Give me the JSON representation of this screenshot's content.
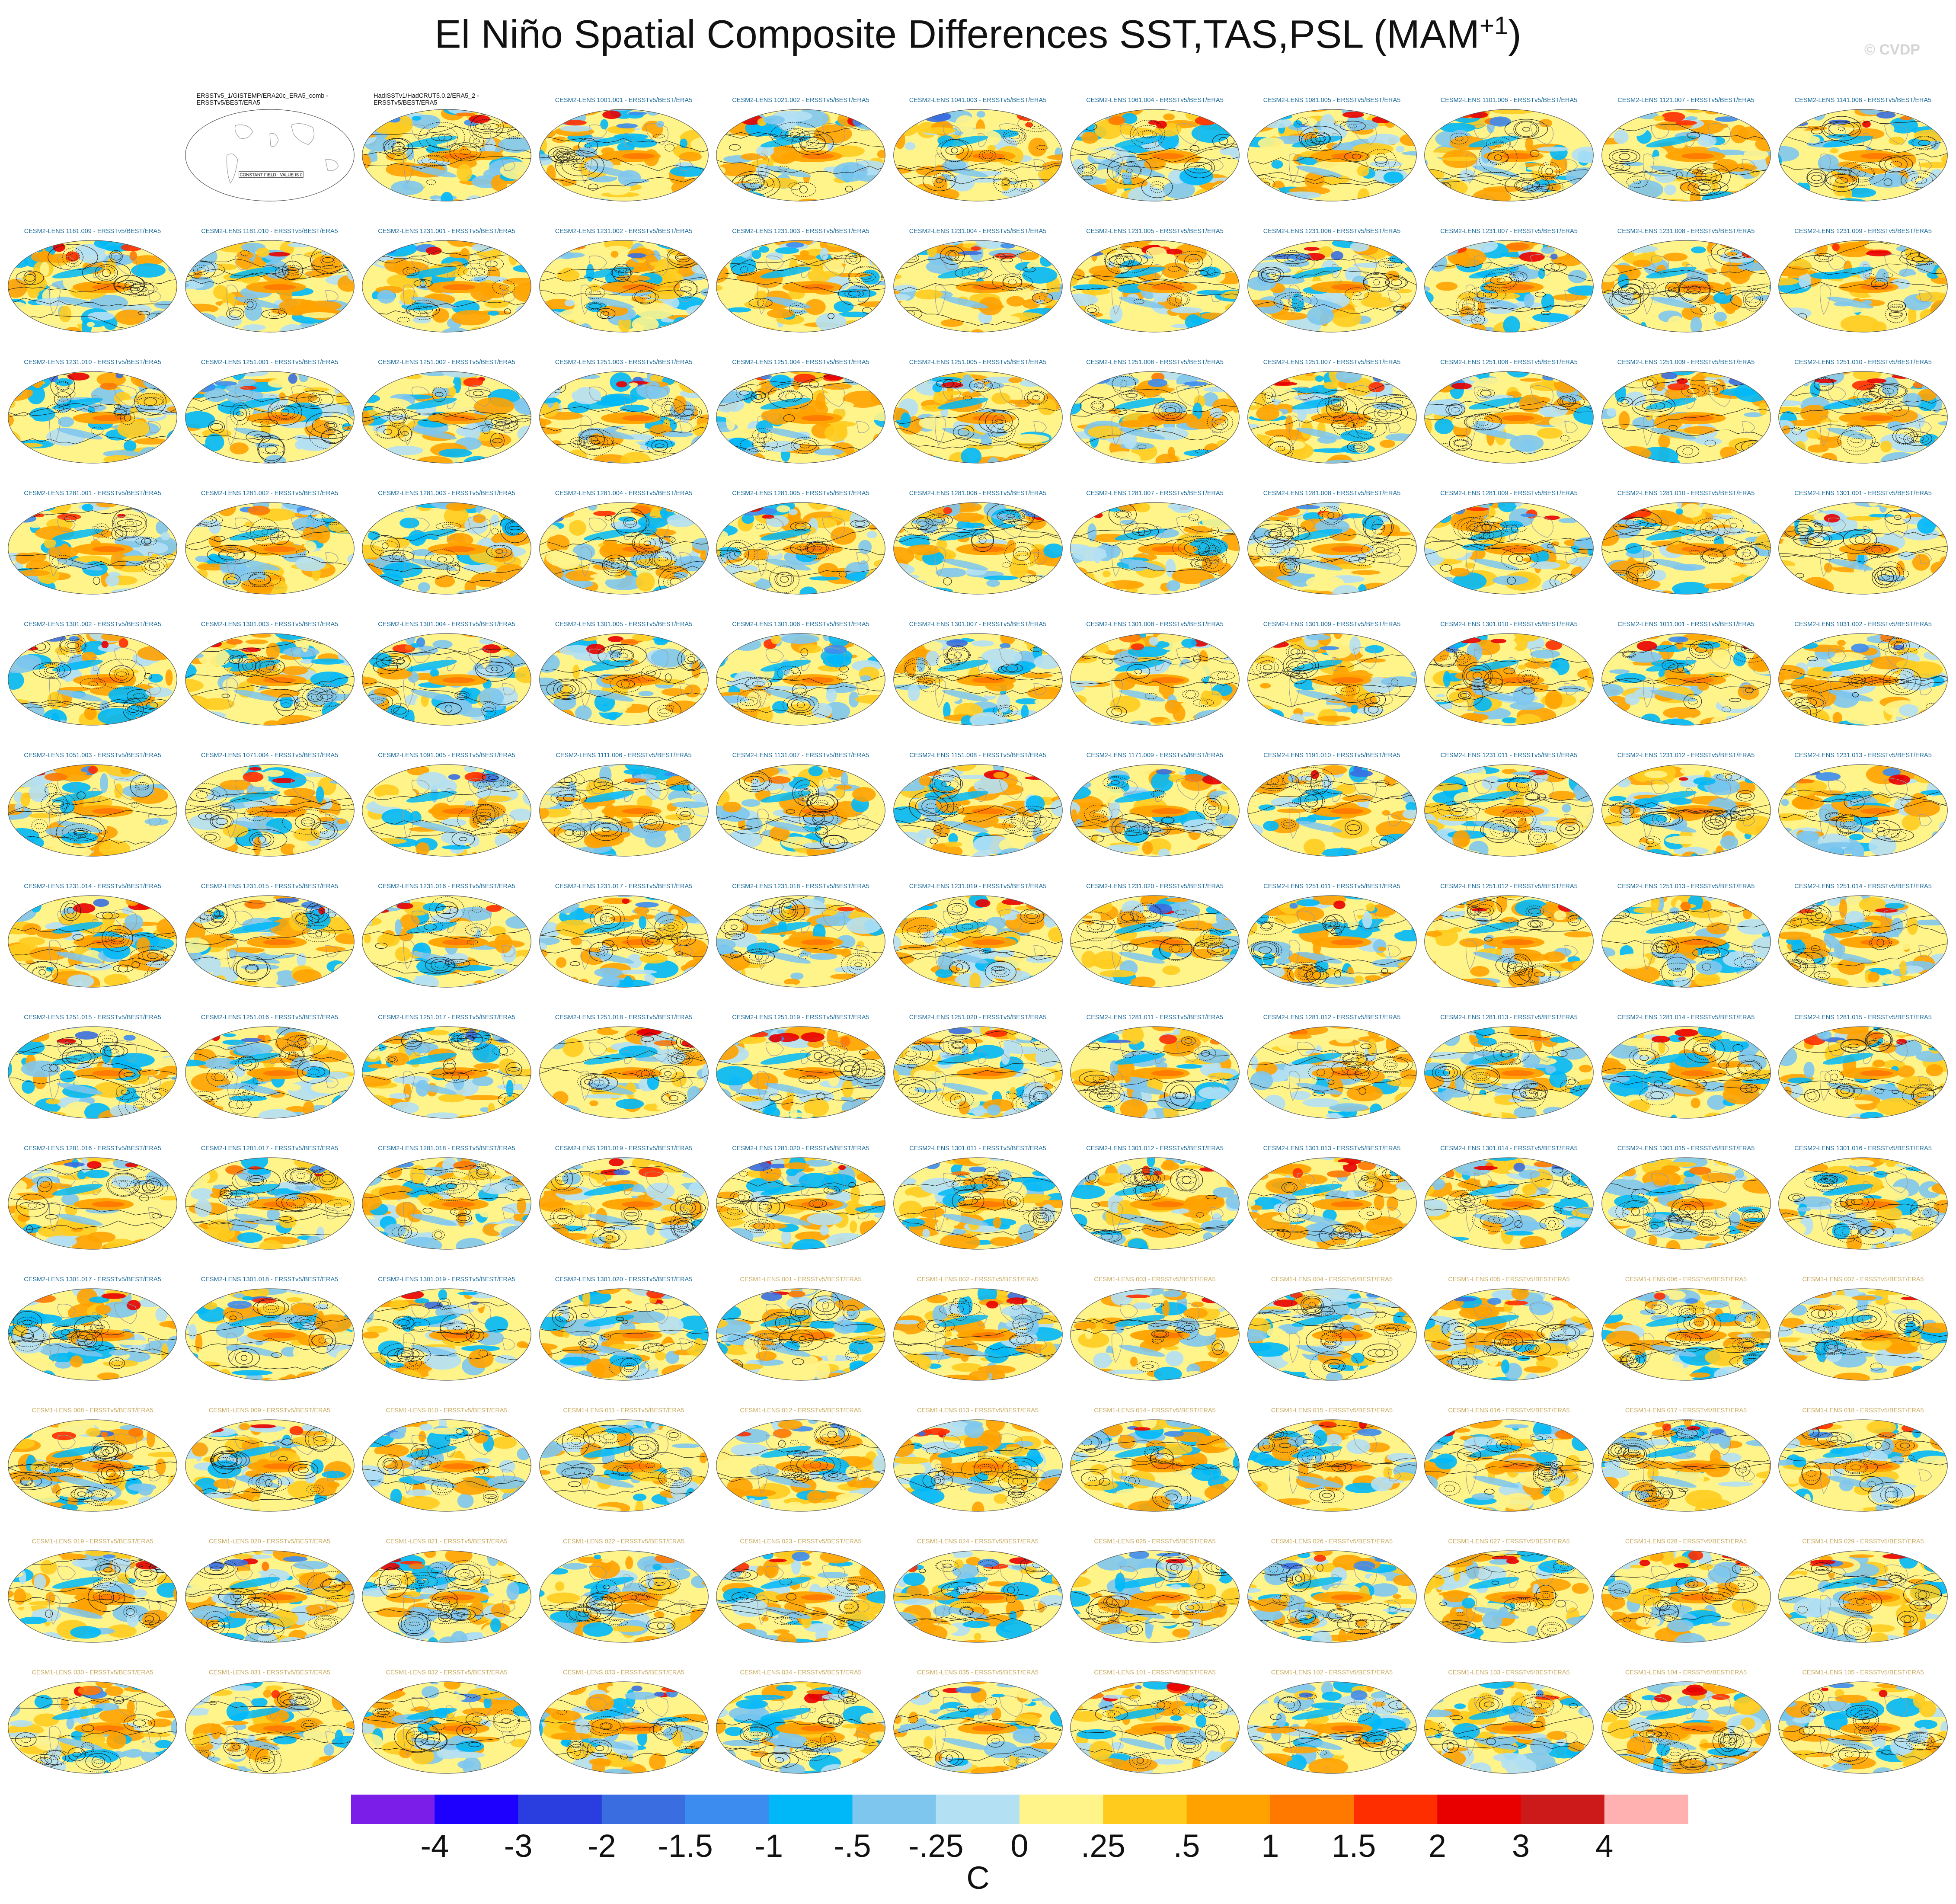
{
  "title": "El Niño Spatial Composite Differences SST,TAS,PSL (MAM",
  "title_superscript": "+1",
  "title_close": ")",
  "watermark": "© CVDP",
  "colors": {
    "cesm2_title": "#1a6a9a",
    "cesm1_title": "#c8a85a",
    "obs_title": "#111111",
    "contour": "#1a1a1a",
    "land_outline": "#9a9a9a"
  },
  "chart_data": {
    "type": "heatmap",
    "layout": {
      "rows": 13,
      "cols": 11,
      "projection": "robinson-like global map"
    },
    "panels": [
      {
        "label": "ERSSTv5_1/GISTEMP/ERA20c_ERA5_comb - ERSSTv5/BEST/ERA5",
        "group": "obs",
        "note": "CONSTANT FIELD - VALUE IS 0"
      },
      {
        "label": "HadISSTv1/HadCRUT5.0.2/ERA5_2 - ERSSTv5/BEST/ERA5",
        "group": "obs"
      },
      {
        "label": "CESM2-LENS 1001.001 - ERSSTv5/BEST/ERA5",
        "group": "cesm2"
      },
      {
        "label": "CESM2-LENS 1021.002 - ERSSTv5/BEST/ERA5",
        "group": "cesm2"
      },
      {
        "label": "CESM2-LENS 1041.003 - ERSSTv5/BEST/ERA5",
        "group": "cesm2"
      },
      {
        "label": "CESM2-LENS 1061.004 - ERSSTv5/BEST/ERA5",
        "group": "cesm2"
      },
      {
        "label": "CESM2-LENS 1081.005 - ERSSTv5/BEST/ERA5",
        "group": "cesm2"
      },
      {
        "label": "CESM2-LENS 1101.006 - ERSSTv5/BEST/ERA5",
        "group": "cesm2"
      },
      {
        "label": "CESM2-LENS 1121.007 - ERSSTv5/BEST/ERA5",
        "group": "cesm2"
      },
      {
        "label": "CESM2-LENS 1141.008 - ERSSTv5/BEST/ERA5",
        "group": "cesm2"
      },
      {
        "label": "CESM2-LENS 1161.009 - ERSSTv5/BEST/ERA5",
        "group": "cesm2"
      },
      {
        "label": "CESM2-LENS 1181.010 - ERSSTv5/BEST/ERA5",
        "group": "cesm2"
      },
      {
        "label": "CESM2-LENS 1231.001 - ERSSTv5/BEST/ERA5",
        "group": "cesm2"
      },
      {
        "label": "CESM2-LENS 1231.002 - ERSSTv5/BEST/ERA5",
        "group": "cesm2"
      },
      {
        "label": "CESM2-LENS 1231.003 - ERSSTv5/BEST/ERA5",
        "group": "cesm2"
      },
      {
        "label": "CESM2-LENS 1231.004 - ERSSTv5/BEST/ERA5",
        "group": "cesm2"
      },
      {
        "label": "CESM2-LENS 1231.005 - ERSSTv5/BEST/ERA5",
        "group": "cesm2"
      },
      {
        "label": "CESM2-LENS 1231.006 - ERSSTv5/BEST/ERA5",
        "group": "cesm2"
      },
      {
        "label": "CESM2-LENS 1231.007 - ERSSTv5/BEST/ERA5",
        "group": "cesm2"
      },
      {
        "label": "CESM2-LENS 1231.008 - ERSSTv5/BEST/ERA5",
        "group": "cesm2"
      },
      {
        "label": "CESM2-LENS 1231.009 - ERSSTv5/BEST/ERA5",
        "group": "cesm2"
      },
      {
        "label": "CESM2-LENS 1231.010 - ERSSTv5/BEST/ERA5",
        "group": "cesm2"
      },
      {
        "label": "CESM2-LENS 1251.001 - ERSSTv5/BEST/ERA5",
        "group": "cesm2"
      },
      {
        "label": "CESM2-LENS 1251.002 - ERSSTv5/BEST/ERA5",
        "group": "cesm2"
      },
      {
        "label": "CESM2-LENS 1251.003 - ERSSTv5/BEST/ERA5",
        "group": "cesm2"
      },
      {
        "label": "CESM2-LENS 1251.004 - ERSSTv5/BEST/ERA5",
        "group": "cesm2"
      },
      {
        "label": "CESM2-LENS 1251.005 - ERSSTv5/BEST/ERA5",
        "group": "cesm2"
      },
      {
        "label": "CESM2-LENS 1251.006 - ERSSTv5/BEST/ERA5",
        "group": "cesm2"
      },
      {
        "label": "CESM2-LENS 1251.007 - ERSSTv5/BEST/ERA5",
        "group": "cesm2"
      },
      {
        "label": "CESM2-LENS 1251.008 - ERSSTv5/BEST/ERA5",
        "group": "cesm2"
      },
      {
        "label": "CESM2-LENS 1251.009 - ERSSTv5/BEST/ERA5",
        "group": "cesm2"
      },
      {
        "label": "CESM2-LENS 1251.010 - ERSSTv5/BEST/ERA5",
        "group": "cesm2"
      },
      {
        "label": "CESM2-LENS 1281.001 - ERSSTv5/BEST/ERA5",
        "group": "cesm2"
      },
      {
        "label": "CESM2-LENS 1281.002 - ERSSTv5/BEST/ERA5",
        "group": "cesm2"
      },
      {
        "label": "CESM2-LENS 1281.003 - ERSSTv5/BEST/ERA5",
        "group": "cesm2"
      },
      {
        "label": "CESM2-LENS 1281.004 - ERSSTv5/BEST/ERA5",
        "group": "cesm2"
      },
      {
        "label": "CESM2-LENS 1281.005 - ERSSTv5/BEST/ERA5",
        "group": "cesm2"
      },
      {
        "label": "CESM2-LENS 1281.006 - ERSSTv5/BEST/ERA5",
        "group": "cesm2"
      },
      {
        "label": "CESM2-LENS 1281.007 - ERSSTv5/BEST/ERA5",
        "group": "cesm2"
      },
      {
        "label": "CESM2-LENS 1281.008 - ERSSTv5/BEST/ERA5",
        "group": "cesm2"
      },
      {
        "label": "CESM2-LENS 1281.009 - ERSSTv5/BEST/ERA5",
        "group": "cesm2"
      },
      {
        "label": "CESM2-LENS 1281.010 - ERSSTv5/BEST/ERA5",
        "group": "cesm2"
      },
      {
        "label": "CESM2-LENS 1301.001 - ERSSTv5/BEST/ERA5",
        "group": "cesm2"
      },
      {
        "label": "CESM2-LENS 1301.002 - ERSSTv5/BEST/ERA5",
        "group": "cesm2"
      },
      {
        "label": "CESM2-LENS 1301.003 - ERSSTv5/BEST/ERA5",
        "group": "cesm2"
      },
      {
        "label": "CESM2-LENS 1301.004 - ERSSTv5/BEST/ERA5",
        "group": "cesm2"
      },
      {
        "label": "CESM2-LENS 1301.005 - ERSSTv5/BEST/ERA5",
        "group": "cesm2"
      },
      {
        "label": "CESM2-LENS 1301.006 - ERSSTv5/BEST/ERA5",
        "group": "cesm2"
      },
      {
        "label": "CESM2-LENS 1301.007 - ERSSTv5/BEST/ERA5",
        "group": "cesm2"
      },
      {
        "label": "CESM2-LENS 1301.008 - ERSSTv5/BEST/ERA5",
        "group": "cesm2"
      },
      {
        "label": "CESM2-LENS 1301.009 - ERSSTv5/BEST/ERA5",
        "group": "cesm2"
      },
      {
        "label": "CESM2-LENS 1301.010 - ERSSTv5/BEST/ERA5",
        "group": "cesm2"
      },
      {
        "label": "CESM2-LENS 1011.001 - ERSSTv5/BEST/ERA5",
        "group": "cesm2"
      },
      {
        "label": "CESM2-LENS 1031.002 - ERSSTv5/BEST/ERA5",
        "group": "cesm2"
      },
      {
        "label": "CESM2-LENS 1051.003 - ERSSTv5/BEST/ERA5",
        "group": "cesm2"
      },
      {
        "label": "CESM2-LENS 1071.004 - ERSSTv5/BEST/ERA5",
        "group": "cesm2"
      },
      {
        "label": "CESM2-LENS 1091.005 - ERSSTv5/BEST/ERA5",
        "group": "cesm2"
      },
      {
        "label": "CESM2-LENS 1111.006 - ERSSTv5/BEST/ERA5",
        "group": "cesm2"
      },
      {
        "label": "CESM2-LENS 1131.007 - ERSSTv5/BEST/ERA5",
        "group": "cesm2"
      },
      {
        "label": "CESM2-LENS 1151.008 - ERSSTv5/BEST/ERA5",
        "group": "cesm2"
      },
      {
        "label": "CESM2-LENS 1171.009 - ERSSTv5/BEST/ERA5",
        "group": "cesm2"
      },
      {
        "label": "CESM2-LENS 1191.010 - ERSSTv5/BEST/ERA5",
        "group": "cesm2"
      },
      {
        "label": "CESM2-LENS 1231.011 - ERSSTv5/BEST/ERA5",
        "group": "cesm2"
      },
      {
        "label": "CESM2-LENS 1231.012 - ERSSTv5/BEST/ERA5",
        "group": "cesm2"
      },
      {
        "label": "CESM2-LENS 1231.013 - ERSSTv5/BEST/ERA5",
        "group": "cesm2"
      },
      {
        "label": "CESM2-LENS 1231.014 - ERSSTv5/BEST/ERA5",
        "group": "cesm2"
      },
      {
        "label": "CESM2-LENS 1231.015 - ERSSTv5/BEST/ERA5",
        "group": "cesm2"
      },
      {
        "label": "CESM2-LENS 1231.016 - ERSSTv5/BEST/ERA5",
        "group": "cesm2"
      },
      {
        "label": "CESM2-LENS 1231.017 - ERSSTv5/BEST/ERA5",
        "group": "cesm2"
      },
      {
        "label": "CESM2-LENS 1231.018 - ERSSTv5/BEST/ERA5",
        "group": "cesm2"
      },
      {
        "label": "CESM2-LENS 1231.019 - ERSSTv5/BEST/ERA5",
        "group": "cesm2"
      },
      {
        "label": "CESM2-LENS 1231.020 - ERSSTv5/BEST/ERA5",
        "group": "cesm2"
      },
      {
        "label": "CESM2-LENS 1251.011 - ERSSTv5/BEST/ERA5",
        "group": "cesm2"
      },
      {
        "label": "CESM2-LENS 1251.012 - ERSSTv5/BEST/ERA5",
        "group": "cesm2"
      },
      {
        "label": "CESM2-LENS 1251.013 - ERSSTv5/BEST/ERA5",
        "group": "cesm2"
      },
      {
        "label": "CESM2-LENS 1251.014 - ERSSTv5/BEST/ERA5",
        "group": "cesm2"
      },
      {
        "label": "CESM2-LENS 1251.015 - ERSSTv5/BEST/ERA5",
        "group": "cesm2"
      },
      {
        "label": "CESM2-LENS 1251.016 - ERSSTv5/BEST/ERA5",
        "group": "cesm2"
      },
      {
        "label": "CESM2-LENS 1251.017 - ERSSTv5/BEST/ERA5",
        "group": "cesm2"
      },
      {
        "label": "CESM2-LENS 1251.018 - ERSSTv5/BEST/ERA5",
        "group": "cesm2"
      },
      {
        "label": "CESM2-LENS 1251.019 - ERSSTv5/BEST/ERA5",
        "group": "cesm2"
      },
      {
        "label": "CESM2-LENS 1251.020 - ERSSTv5/BEST/ERA5",
        "group": "cesm2"
      },
      {
        "label": "CESM2-LENS 1281.011 - ERSSTv5/BEST/ERA5",
        "group": "cesm2"
      },
      {
        "label": "CESM2-LENS 1281.012 - ERSSTv5/BEST/ERA5",
        "group": "cesm2"
      },
      {
        "label": "CESM2-LENS 1281.013 - ERSSTv5/BEST/ERA5",
        "group": "cesm2"
      },
      {
        "label": "CESM2-LENS 1281.014 - ERSSTv5/BEST/ERA5",
        "group": "cesm2"
      },
      {
        "label": "CESM2-LENS 1281.015 - ERSSTv5/BEST/ERA5",
        "group": "cesm2"
      },
      {
        "label": "CESM2-LENS 1281.016 - ERSSTv5/BEST/ERA5",
        "group": "cesm2"
      },
      {
        "label": "CESM2-LENS 1281.017 - ERSSTv5/BEST/ERA5",
        "group": "cesm2"
      },
      {
        "label": "CESM2-LENS 1281.018 - ERSSTv5/BEST/ERA5",
        "group": "cesm2"
      },
      {
        "label": "CESM2-LENS 1281.019 - ERSSTv5/BEST/ERA5",
        "group": "cesm2"
      },
      {
        "label": "CESM2-LENS 1281.020 - ERSSTv5/BEST/ERA5",
        "group": "cesm2"
      },
      {
        "label": "CESM2-LENS 1301.011 - ERSSTv5/BEST/ERA5",
        "group": "cesm2"
      },
      {
        "label": "CESM2-LENS 1301.012 - ERSSTv5/BEST/ERA5",
        "group": "cesm2"
      },
      {
        "label": "CESM2-LENS 1301.013 - ERSSTv5/BEST/ERA5",
        "group": "cesm2"
      },
      {
        "label": "CESM2-LENS 1301.014 - ERSSTv5/BEST/ERA5",
        "group": "cesm2"
      },
      {
        "label": "CESM2-LENS 1301.015 - ERSSTv5/BEST/ERA5",
        "group": "cesm2"
      },
      {
        "label": "CESM2-LENS 1301.016 - ERSSTv5/BEST/ERA5",
        "group": "cesm2"
      },
      {
        "label": "CESM2-LENS 1301.017 - ERSSTv5/BEST/ERA5",
        "group": "cesm2"
      },
      {
        "label": "CESM2-LENS 1301.018 - ERSSTv5/BEST/ERA5",
        "group": "cesm2"
      },
      {
        "label": "CESM2-LENS 1301.019 - ERSSTv5/BEST/ERA5",
        "group": "cesm2"
      },
      {
        "label": "CESM2-LENS 1301.020 - ERSSTv5/BEST/ERA5",
        "group": "cesm2"
      },
      {
        "label": "CESM1-LENS 001 - ERSSTv5/BEST/ERA5",
        "group": "cesm1"
      },
      {
        "label": "CESM1-LENS 002 - ERSSTv5/BEST/ERA5",
        "group": "cesm1"
      },
      {
        "label": "CESM1-LENS 003 - ERSSTv5/BEST/ERA5",
        "group": "cesm1"
      },
      {
        "label": "CESM1-LENS 004 - ERSSTv5/BEST/ERA5",
        "group": "cesm1"
      },
      {
        "label": "CESM1-LENS 005 - ERSSTv5/BEST/ERA5",
        "group": "cesm1"
      },
      {
        "label": "CESM1-LENS 006 - ERSSTv5/BEST/ERA5",
        "group": "cesm1"
      },
      {
        "label": "CESM1-LENS 007 - ERSSTv5/BEST/ERA5",
        "group": "cesm1"
      },
      {
        "label": "CESM1-LENS 008 - ERSSTv5/BEST/ERA5",
        "group": "cesm1"
      },
      {
        "label": "CESM1-LENS 009 - ERSSTv5/BEST/ERA5",
        "group": "cesm1"
      },
      {
        "label": "CESM1-LENS 010 - ERSSTv5/BEST/ERA5",
        "group": "cesm1"
      },
      {
        "label": "CESM1-LENS 011 - ERSSTv5/BEST/ERA5",
        "group": "cesm1"
      },
      {
        "label": "CESM1-LENS 012 - ERSSTv5/BEST/ERA5",
        "group": "cesm1"
      },
      {
        "label": "CESM1-LENS 013 - ERSSTv5/BEST/ERA5",
        "group": "cesm1"
      },
      {
        "label": "CESM1-LENS 014 - ERSSTv5/BEST/ERA5",
        "group": "cesm1"
      },
      {
        "label": "CESM1-LENS 015 - ERSSTv5/BEST/ERA5",
        "group": "cesm1"
      },
      {
        "label": "CESM1-LENS 016 - ERSSTv5/BEST/ERA5",
        "group": "cesm1"
      },
      {
        "label": "CESM1-LENS 017 - ERSSTv5/BEST/ERA5",
        "group": "cesm1"
      },
      {
        "label": "CESM1-LENS 018 - ERSSTv5/BEST/ERA5",
        "group": "cesm1"
      },
      {
        "label": "CESM1-LENS 019 - ERSSTv5/BEST/ERA5",
        "group": "cesm1"
      },
      {
        "label": "CESM1-LENS 020 - ERSSTv5/BEST/ERA5",
        "group": "cesm1"
      },
      {
        "label": "CESM1-LENS 021 - ERSSTv5/BEST/ERA5",
        "group": "cesm1"
      },
      {
        "label": "CESM1-LENS 022 - ERSSTv5/BEST/ERA5",
        "group": "cesm1"
      },
      {
        "label": "CESM1-LENS 023 - ERSSTv5/BEST/ERA5",
        "group": "cesm1"
      },
      {
        "label": "CESM1-LENS 024 - ERSSTv5/BEST/ERA5",
        "group": "cesm1"
      },
      {
        "label": "CESM1-LENS 025 - ERSSTv5/BEST/ERA5",
        "group": "cesm1"
      },
      {
        "label": "CESM1-LENS 026 - ERSSTv5/BEST/ERA5",
        "group": "cesm1"
      },
      {
        "label": "CESM1-LENS 027 - ERSSTv5/BEST/ERA5",
        "group": "cesm1"
      },
      {
        "label": "CESM1-LENS 028 - ERSSTv5/BEST/ERA5",
        "group": "cesm1"
      },
      {
        "label": "CESM1-LENS 029 - ERSSTv5/BEST/ERA5",
        "group": "cesm1"
      },
      {
        "label": "CESM1-LENS 030 - ERSSTv5/BEST/ERA5",
        "group": "cesm1"
      },
      {
        "label": "CESM1-LENS 031 - ERSSTv5/BEST/ERA5",
        "group": "cesm1"
      },
      {
        "label": "CESM1-LENS 032 - ERSSTv5/BEST/ERA5",
        "group": "cesm1"
      },
      {
        "label": "CESM1-LENS 033 - ERSSTv5/BEST/ERA5",
        "group": "cesm1"
      },
      {
        "label": "CESM1-LENS 034 - ERSSTv5/BEST/ERA5",
        "group": "cesm1"
      },
      {
        "label": "CESM1-LENS 035 - ERSSTv5/BEST/ERA5",
        "group": "cesm1"
      },
      {
        "label": "CESM1-LENS 101 - ERSSTv5/BEST/ERA5",
        "group": "cesm1"
      },
      {
        "label": "CESM1-LENS 102 - ERSSTv5/BEST/ERA5",
        "group": "cesm1"
      },
      {
        "label": "CESM1-LENS 103 - ERSSTv5/BEST/ERA5",
        "group": "cesm1"
      },
      {
        "label": "CESM1-LENS 104 - ERSSTv5/BEST/ERA5",
        "group": "cesm1"
      },
      {
        "label": "CESM1-LENS 105 - ERSSTv5/BEST/ERA5",
        "group": "cesm1"
      }
    ],
    "colorbar": {
      "units": "C",
      "tick_labels": [
        "-4",
        "-3",
        "-2",
        "-1.5",
        "-1",
        "-.5",
        "-.25",
        "0",
        ".25",
        ".5",
        "1",
        "1.5",
        "2",
        "3",
        "4"
      ],
      "colors": [
        "#7a1ee8",
        "#1e00ff",
        "#2a3ee0",
        "#3a6ee0",
        "#3c8cf0",
        "#00b8f8",
        "#7ec6ee",
        "#b4e0f4",
        "#fff48a",
        "#ffcc1e",
        "#ffa200",
        "#ff7800",
        "#ff2e00",
        "#e80000",
        "#cc1a1a",
        "#ffb0b0"
      ]
    }
  }
}
